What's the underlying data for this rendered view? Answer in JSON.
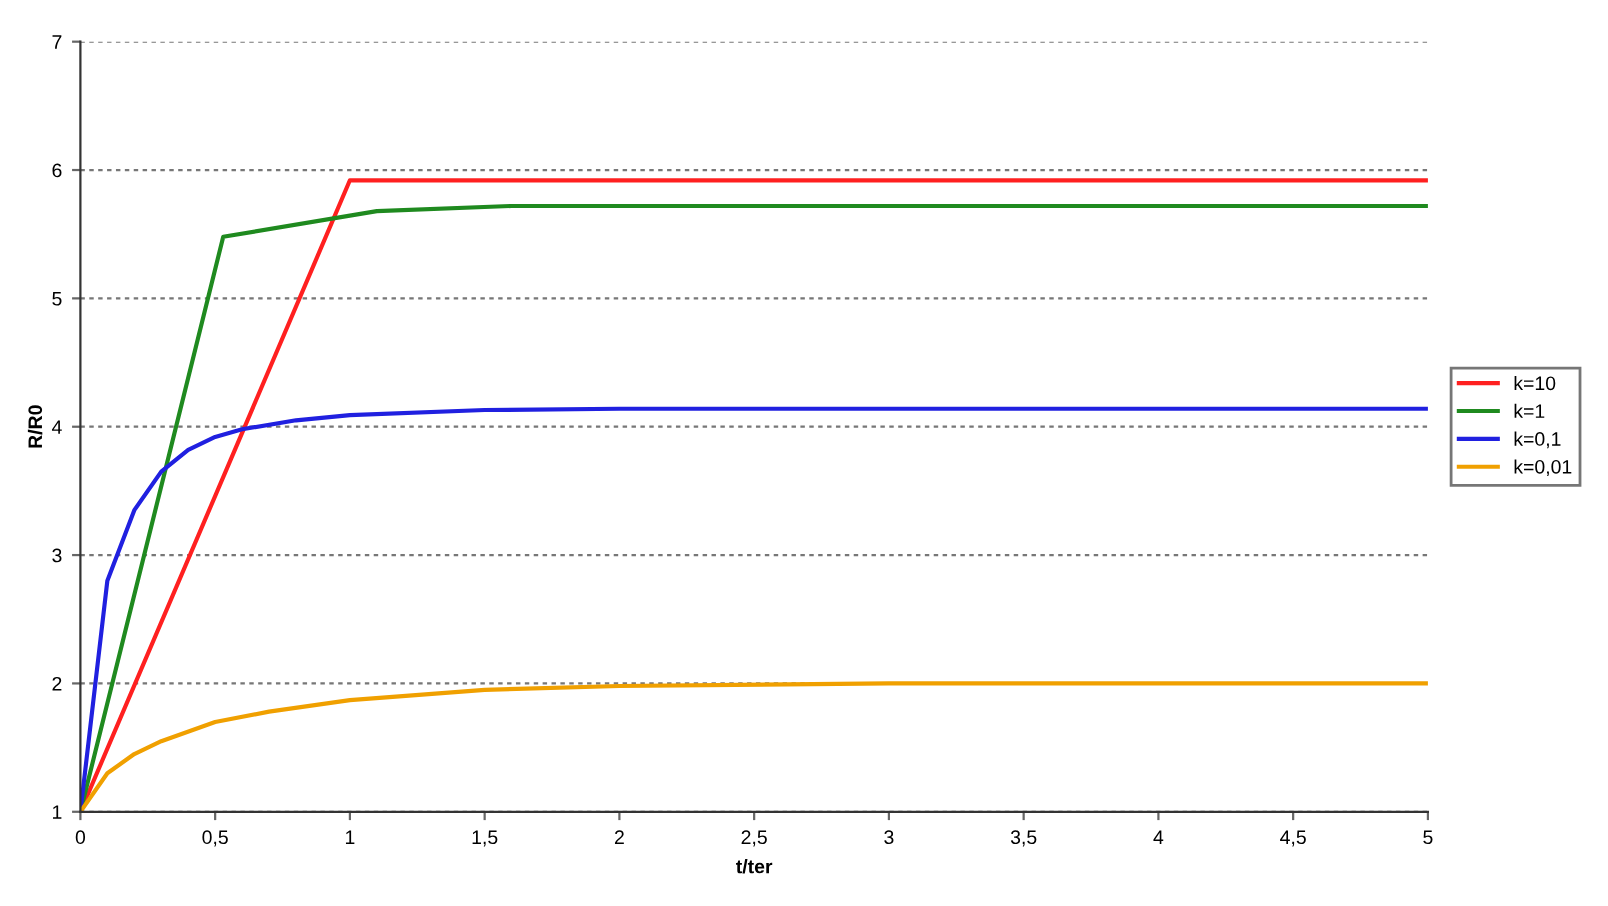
{
  "chart_data": {
    "type": "line",
    "xlabel": "t/ter",
    "ylabel": "R/R0",
    "xlim": [
      0,
      5
    ],
    "xticks": [
      {
        "value": 0,
        "label": "0"
      },
      {
        "value": 0.5,
        "label": "0,5"
      },
      {
        "value": 1,
        "label": "1"
      },
      {
        "value": 1.5,
        "label": "1,5"
      },
      {
        "value": 2,
        "label": "2"
      },
      {
        "value": 2.5,
        "label": "2,5"
      },
      {
        "value": 3,
        "label": "3"
      },
      {
        "value": 3.5,
        "label": "3,5"
      },
      {
        "value": 4,
        "label": "4"
      },
      {
        "value": 4.5,
        "label": "4,5"
      },
      {
        "value": 5,
        "label": "5"
      }
    ],
    "ylim": [
      1,
      7
    ],
    "yticks": [
      1,
      2,
      3,
      4,
      5,
      6,
      7
    ],
    "grid": "y",
    "legend": "right",
    "marker": "none",
    "line_style": "solid",
    "series": [
      {
        "name": "k=10",
        "color": "#ff2020",
        "x": [
          0,
          1,
          5
        ],
        "values": [
          1,
          5.92,
          5.92
        ]
      },
      {
        "name": "k=1",
        "color": "#1f8a1f",
        "x": [
          0,
          0.53,
          1.1,
          1.6,
          5
        ],
        "values": [
          1,
          5.48,
          5.68,
          5.72,
          5.72
        ]
      },
      {
        "name": "k=0,1",
        "color": "#2020e0",
        "x": [
          0,
          0.1,
          0.2,
          0.3,
          0.4,
          0.5,
          0.6,
          0.8,
          1,
          1.5,
          2,
          5
        ],
        "values": [
          1,
          2.8,
          3.35,
          3.65,
          3.82,
          3.92,
          3.98,
          4.05,
          4.09,
          4.13,
          4.14,
          4.14
        ]
      },
      {
        "name": "k=0,01",
        "color": "#f0a000",
        "x": [
          0,
          0.1,
          0.2,
          0.3,
          0.5,
          0.7,
          1,
          1.5,
          2,
          3,
          5
        ],
        "values": [
          1,
          1.3,
          1.45,
          1.55,
          1.7,
          1.78,
          1.87,
          1.95,
          1.98,
          2.0,
          2.0
        ]
      }
    ]
  }
}
